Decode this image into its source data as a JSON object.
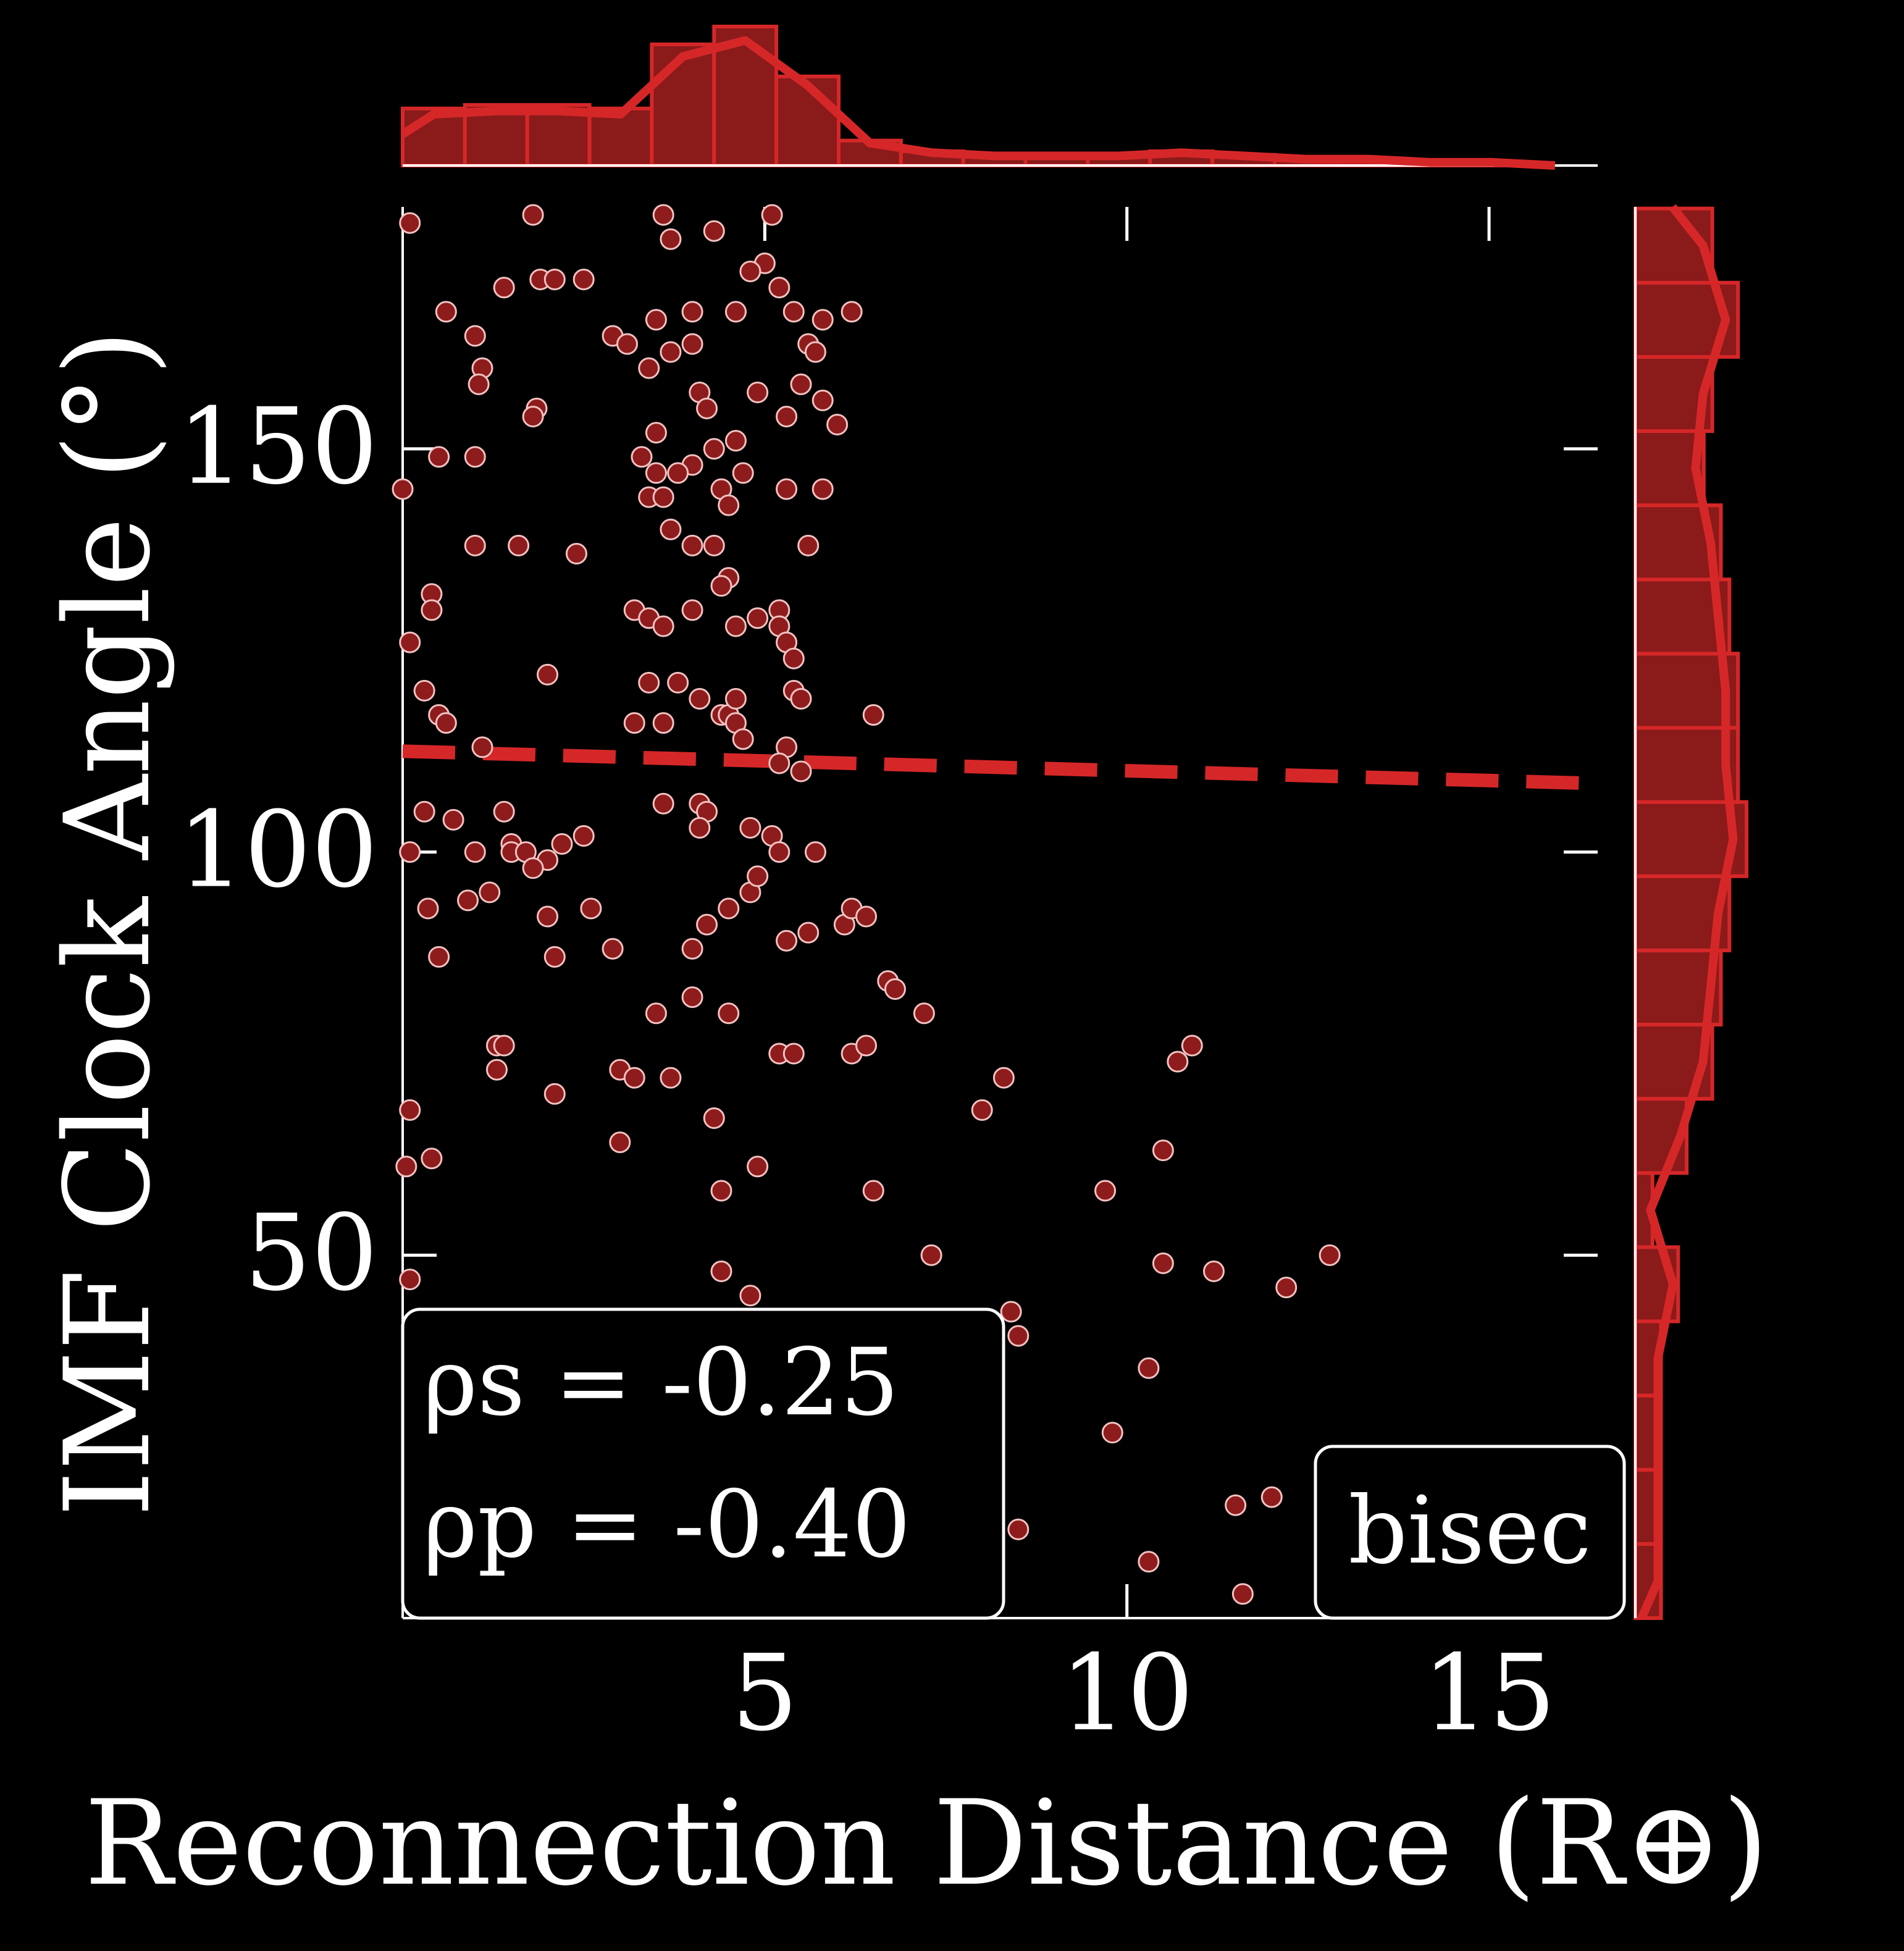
{
  "colors": {
    "background": "#000000",
    "accent": "#d62728",
    "bar_fill": "#8b1a1a",
    "axis": "#ffffff"
  },
  "chart_data": {
    "type": "scatter",
    "xlabel": "Reconnection Distance (R⊕)",
    "ylabel": "IMF Clock Angle (°)",
    "xlim": [
      0,
      16.5
    ],
    "ylim": [
      5,
      180
    ],
    "xticks": [
      5,
      10,
      15
    ],
    "yticks": [
      50,
      100,
      150
    ],
    "xtick_labels": [
      "5",
      "10",
      "15"
    ],
    "ytick_labels": [
      "50",
      "100",
      "150"
    ],
    "grid": false,
    "annotation_stats": {
      "line1": "ρs = -0.25",
      "line2": "ρp = -0.40"
    },
    "annotation_label": "bisec",
    "trend_line": {
      "x": [
        0,
        16.5
      ],
      "y": [
        112.5,
        108.5
      ],
      "style": "dashed"
    },
    "points": [
      [
        0.1,
        178
      ],
      [
        1.8,
        179
      ],
      [
        3.6,
        179
      ],
      [
        5.1,
        179
      ],
      [
        4.3,
        177
      ],
      [
        3.7,
        176
      ],
      [
        5.0,
        173
      ],
      [
        4.8,
        172
      ],
      [
        5.2,
        170
      ],
      [
        1.9,
        171
      ],
      [
        1.4,
        170
      ],
      [
        2.1,
        171
      ],
      [
        2.5,
        171
      ],
      [
        0.6,
        167
      ],
      [
        3.5,
        166
      ],
      [
        4.0,
        167
      ],
      [
        4.6,
        167
      ],
      [
        5.4,
        167
      ],
      [
        6.2,
        167
      ],
      [
        5.8,
        166
      ],
      [
        2.9,
        164
      ],
      [
        3.1,
        163
      ],
      [
        3.7,
        162
      ],
      [
        4.0,
        163
      ],
      [
        1.0,
        164
      ],
      [
        5.6,
        163
      ],
      [
        5.7,
        162
      ],
      [
        1.1,
        160
      ],
      [
        1.05,
        158
      ],
      [
        5.5,
        158
      ],
      [
        3.4,
        160
      ],
      [
        5.8,
        156
      ],
      [
        4.9,
        157
      ],
      [
        4.1,
        157
      ],
      [
        4.2,
        155
      ],
      [
        1.85,
        155
      ],
      [
        1.8,
        154
      ],
      [
        5.3,
        154
      ],
      [
        6.0,
        153
      ],
      [
        3.5,
        152
      ],
      [
        4.3,
        150
      ],
      [
        4.0,
        148
      ],
      [
        4.6,
        151
      ],
      [
        0.5,
        149
      ],
      [
        1.0,
        149
      ],
      [
        3.3,
        149
      ],
      [
        3.5,
        147
      ],
      [
        3.8,
        147
      ],
      [
        4.4,
        145
      ],
      [
        4.5,
        143
      ],
      [
        4.7,
        147
      ],
      [
        5.3,
        145
      ],
      [
        5.8,
        145
      ],
      [
        0.0,
        145
      ],
      [
        3.4,
        144
      ],
      [
        3.6,
        144
      ],
      [
        1.0,
        138
      ],
      [
        1.6,
        138
      ],
      [
        2.4,
        137
      ],
      [
        3.7,
        140
      ],
      [
        4.0,
        138
      ],
      [
        4.3,
        138
      ],
      [
        4.5,
        134
      ],
      [
        4.4,
        133
      ],
      [
        5.6,
        138
      ],
      [
        0.4,
        132
      ],
      [
        0.4,
        130
      ],
      [
        3.2,
        130
      ],
      [
        3.4,
        129
      ],
      [
        3.6,
        128
      ],
      [
        4.0,
        130
      ],
      [
        4.6,
        128
      ],
      [
        4.9,
        129
      ],
      [
        5.2,
        130
      ],
      [
        5.2,
        128
      ],
      [
        5.3,
        126
      ],
      [
        0.1,
        126
      ],
      [
        2.0,
        122
      ],
      [
        5.4,
        124
      ],
      [
        3.4,
        121
      ],
      [
        3.8,
        121
      ],
      [
        5.4,
        120
      ],
      [
        5.5,
        119
      ],
      [
        6.5,
        117
      ],
      [
        0.3,
        120
      ],
      [
        0.5,
        117
      ],
      [
        4.1,
        119
      ],
      [
        4.4,
        117
      ],
      [
        4.5,
        117
      ],
      [
        4.6,
        119
      ],
      [
        0.6,
        116
      ],
      [
        3.2,
        116
      ],
      [
        3.6,
        116
      ],
      [
        4.6,
        116
      ],
      [
        4.7,
        114
      ],
      [
        5.3,
        113
      ],
      [
        1.1,
        113
      ],
      [
        5.2,
        111
      ],
      [
        5.5,
        110
      ],
      [
        0.3,
        105
      ],
      [
        0.7,
        104
      ],
      [
        1.4,
        105
      ],
      [
        1.5,
        101
      ],
      [
        2.2,
        101
      ],
      [
        3.6,
        106
      ],
      [
        4.1,
        106
      ],
      [
        4.2,
        105
      ],
      [
        4.1,
        103
      ],
      [
        4.8,
        103
      ],
      [
        5.1,
        102
      ],
      [
        5.7,
        100
      ],
      [
        5.2,
        100
      ],
      [
        1.0,
        100
      ],
      [
        1.5,
        100
      ],
      [
        1.7,
        100
      ],
      [
        2.0,
        99
      ],
      [
        1.8,
        98
      ],
      [
        2.5,
        102
      ],
      [
        0.1,
        100
      ],
      [
        0.35,
        93
      ],
      [
        0.9,
        94
      ],
      [
        1.2,
        95
      ],
      [
        2.0,
        92
      ],
      [
        2.6,
        93
      ],
      [
        4.2,
        91
      ],
      [
        4.0,
        88
      ],
      [
        4.5,
        93
      ],
      [
        4.8,
        95
      ],
      [
        4.9,
        97
      ],
      [
        5.3,
        89
      ],
      [
        5.6,
        90
      ],
      [
        6.1,
        91
      ],
      [
        6.2,
        93
      ],
      [
        6.4,
        92
      ],
      [
        0.5,
        87
      ],
      [
        2.1,
        87
      ],
      [
        2.9,
        88
      ],
      [
        4.0,
        82
      ],
      [
        4.5,
        80
      ],
      [
        6.7,
        84
      ],
      [
        6.8,
        83
      ],
      [
        7.2,
        80
      ],
      [
        3.5,
        80
      ],
      [
        1.3,
        76
      ],
      [
        1.4,
        76
      ],
      [
        1.3,
        73
      ],
      [
        3.0,
        73
      ],
      [
        2.1,
        70
      ],
      [
        3.2,
        72
      ],
      [
        3.7,
        72
      ],
      [
        5.2,
        75
      ],
      [
        5.4,
        75
      ],
      [
        6.2,
        75
      ],
      [
        6.4,
        76
      ],
      [
        8.0,
        68
      ],
      [
        8.3,
        72
      ],
      [
        10.7,
        74
      ],
      [
        10.9,
        76
      ],
      [
        0.1,
        68
      ],
      [
        4.3,
        67
      ],
      [
        0.05,
        61
      ],
      [
        0.4,
        62
      ],
      [
        3.0,
        64
      ],
      [
        4.9,
        61
      ],
      [
        10.5,
        63
      ],
      [
        9.7,
        58
      ],
      [
        4.4,
        58
      ],
      [
        6.5,
        58
      ],
      [
        7.3,
        50
      ],
      [
        10.5,
        49
      ],
      [
        11.2,
        48
      ],
      [
        12.8,
        50
      ],
      [
        12.2,
        46
      ],
      [
        0.1,
        47
      ],
      [
        4.4,
        48
      ],
      [
        4.8,
        45
      ],
      [
        8.4,
        43
      ],
      [
        8.5,
        40
      ],
      [
        10.3,
        36
      ],
      [
        9.8,
        28
      ],
      [
        11.5,
        19
      ],
      [
        12.0,
        20
      ],
      [
        10.3,
        12
      ],
      [
        11.6,
        8
      ],
      [
        8.5,
        16
      ]
    ],
    "x_hist": {
      "bin_edges": [
        0,
        0.86,
        1.72,
        2.58,
        3.44,
        4.3,
        5.16,
        6.02,
        6.88,
        7.74,
        8.6,
        9.46,
        10.32,
        11.18,
        12.04,
        12.9,
        13.76,
        14.62,
        15.48,
        16.34
      ],
      "counts": [
        16,
        17,
        17,
        16,
        34,
        39,
        25,
        7,
        4,
        3,
        3,
        3,
        4,
        3,
        2,
        2,
        1,
        1,
        0
      ]
    },
    "y_hist": {
      "bin_edges": [
        5,
        14.2,
        23.4,
        32.6,
        41.8,
        51.0,
        60.2,
        69.4,
        78.6,
        87.8,
        97.0,
        106.2,
        115.4,
        124.6,
        133.8,
        143.0,
        152.2,
        161.4,
        170.6,
        179.8
      ],
      "counts": [
        3,
        3,
        3,
        3,
        5,
        2,
        6,
        9,
        10,
        11,
        13,
        12,
        12,
        11,
        10,
        8,
        9,
        12,
        9
      ]
    }
  }
}
